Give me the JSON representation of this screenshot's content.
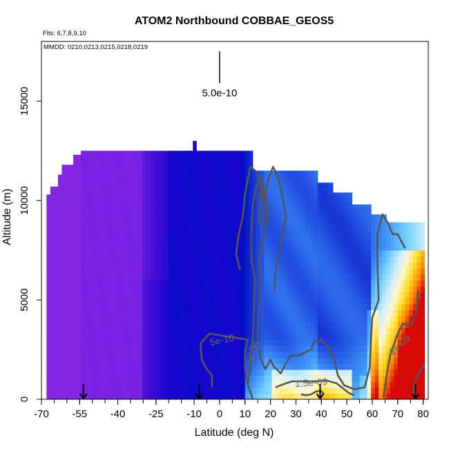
{
  "chart_data": {
    "type": "heatmap",
    "title": "ATOM2 Northbound COBBAE_GEOS5",
    "flights_note": "Flts: 6,7,8,9,10",
    "dates_note": "MMDD: 0210,0213,0215,0218,0219",
    "xlabel": "Latitude (deg N)",
    "ylabel": "Altitude (m)",
    "xlim": [
      -70,
      82
    ],
    "ylim": [
      0,
      18000
    ],
    "x_ticks": [
      -70,
      -55,
      -40,
      -25,
      -10,
      0,
      10,
      20,
      30,
      40,
      50,
      60,
      70,
      80
    ],
    "x_tick_labels": [
      "-70",
      "-55",
      "-40",
      "-25",
      "-10",
      "0",
      "10",
      "20",
      "30",
      "40",
      "50",
      "60",
      "70",
      "80"
    ],
    "x_minor_step": 5,
    "y_ticks": [
      0,
      5000,
      10000,
      15000
    ],
    "y_tick_labels": [
      "0",
      "5000",
      "10000",
      "15000"
    ],
    "scale_bar_label": "5.0e-10",
    "scale_bar_latitude": 0,
    "scale_bar_altitude_range": [
      15900,
      17500
    ],
    "profile_arrow_latitudes": [
      -53.5,
      -8,
      39.5,
      77
    ],
    "contours": [
      {
        "label": "5e-10",
        "label_at": [
          1,
          2950
        ],
        "label_angle": -12,
        "path": [
          [
            -3,
            600
          ],
          [
            -3,
            1200
          ],
          [
            -5,
            1500
          ],
          [
            -7,
            2000
          ],
          [
            -7.5,
            2800
          ],
          [
            -4,
            3300
          ],
          [
            1,
            3200
          ],
          [
            6,
            3100
          ],
          [
            11,
            3000
          ],
          [
            10,
            2400
          ],
          [
            10,
            1500
          ],
          [
            11,
            800
          ],
          [
            12,
            400
          ],
          [
            13,
            0
          ]
        ]
      },
      {
        "label": "1e-09",
        "label_at": [
          13.5,
          2300
        ],
        "label_angle": -72,
        "path": [
          [
            11,
            700
          ],
          [
            12,
            1500
          ],
          [
            12,
            2200
          ],
          [
            13,
            3000
          ],
          [
            13.5,
            4500
          ],
          [
            14,
            6000
          ],
          [
            12.5,
            7000
          ],
          [
            12.5,
            8500
          ],
          [
            13,
            9800
          ],
          [
            14.5,
            10700
          ],
          [
            16,
            11200
          ],
          [
            18,
            10300
          ],
          [
            19,
            9200
          ],
          [
            17.5,
            8200
          ],
          [
            15.5,
            7200
          ],
          [
            16,
            6000
          ],
          [
            15.5,
            4500
          ],
          [
            15,
            3300
          ],
          [
            16,
            2100
          ],
          [
            18,
            1500
          ],
          [
            20,
            2000
          ],
          [
            21,
            1700
          ],
          [
            24,
            1300
          ],
          [
            26,
            1800
          ],
          [
            28,
            2200
          ],
          [
            31,
            2200
          ],
          [
            36,
            2500
          ],
          [
            37,
            2900
          ],
          [
            40,
            3000
          ],
          [
            43,
            2600
          ],
          [
            45,
            2000
          ],
          [
            46.5,
            1200
          ],
          [
            49,
            700
          ],
          [
            53,
            500
          ],
          [
            57,
            600
          ],
          [
            59,
            1600
          ],
          [
            59.5,
            3000
          ],
          [
            60,
            4100
          ],
          [
            62.5,
            5000
          ],
          [
            62,
            7000
          ],
          [
            62,
            8300
          ],
          [
            64,
            9300
          ],
          [
            66,
            8900
          ],
          [
            68,
            8300
          ],
          [
            70,
            8300
          ],
          [
            72,
            7800
          ],
          [
            73,
            7600
          ]
        ]
      },
      {
        "label": "",
        "label_at": [
          0,
          0
        ],
        "label_angle": 0,
        "path": [
          [
            8,
            6500
          ],
          [
            6.5,
            7300
          ],
          [
            7.5,
            8300
          ],
          [
            9,
            9100
          ],
          [
            10,
            10300
          ],
          [
            12,
            11700
          ],
          [
            15,
            11400
          ],
          [
            17,
            10000
          ],
          [
            19,
            11000
          ],
          [
            21,
            11700
          ],
          [
            23,
            11200
          ],
          [
            25,
            10000
          ],
          [
            26,
            9200
          ],
          [
            25,
            8400
          ],
          [
            23.5,
            7400
          ],
          [
            22.5,
            6800
          ],
          [
            22,
            6400
          ],
          [
            21.5,
            5400
          ]
        ]
      },
      {
        "label": "",
        "label_at": [
          0,
          0
        ],
        "label_angle": 0,
        "path": [
          [
            15.5,
            8900
          ],
          [
            15.5,
            9800
          ],
          [
            16.5,
            10600
          ],
          [
            18,
            10000
          ],
          [
            17.5,
            9200
          ],
          [
            16.5,
            8700
          ],
          [
            15.5,
            8900
          ]
        ]
      },
      {
        "label": "1.5e-09",
        "label_at": [
          36,
          800
        ],
        "label_angle": -4,
        "path": [
          [
            22,
            600
          ],
          [
            26,
            800
          ],
          [
            28.5,
            900
          ],
          [
            33,
            900
          ],
          [
            38,
            900
          ],
          [
            42,
            950
          ],
          [
            46,
            800
          ],
          [
            49,
            500
          ],
          [
            51,
            300
          ],
          [
            53,
            200
          ]
        ]
      },
      {
        "label": "",
        "label_at": [
          0,
          0
        ],
        "label_angle": 0,
        "path": [
          [
            32,
            250
          ],
          [
            34,
            200
          ],
          [
            36,
            250
          ],
          [
            38,
            400
          ],
          [
            40,
            400
          ],
          [
            41,
            250
          ]
        ]
      },
      {
        "label": "2e-09",
        "label_at": [
          71,
          2700
        ],
        "label_angle": -42,
        "path": [
          [
            64.5,
            100
          ],
          [
            65.5,
            1100
          ],
          [
            67,
            2200
          ],
          [
            70,
            3300
          ],
          [
            72,
            3800
          ],
          [
            75,
            3700
          ],
          [
            77,
            4200
          ],
          [
            77.5,
            4700
          ],
          [
            78,
            5500
          ]
        ]
      },
      {
        "label": "",
        "label_at": [
          0,
          0
        ],
        "label_angle": 0,
        "path": [
          [
            76,
            100
          ],
          [
            76.5,
            800
          ],
          [
            78.5,
            1400
          ],
          [
            80,
            1700
          ],
          [
            80.5,
            1600
          ]
        ]
      }
    ]
  }
}
